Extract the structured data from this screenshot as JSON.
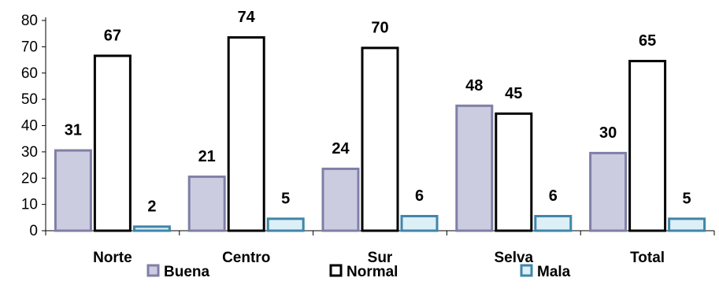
{
  "chart_data": {
    "type": "bar",
    "title": "",
    "xlabel": "",
    "ylabel": "",
    "categories": [
      "Norte",
      "Centro",
      "Sur",
      "Selva",
      "Total"
    ],
    "series": [
      {
        "name": "Buena",
        "values": [
          31,
          21,
          24,
          48,
          30
        ],
        "fill": "#cccce0",
        "stroke": "#7f7fa6"
      },
      {
        "name": "Normal",
        "values": [
          67,
          74,
          70,
          45,
          65
        ],
        "fill": "#ffffff",
        "stroke": "#000000"
      },
      {
        "name": "Mala",
        "values": [
          2,
          5,
          6,
          6,
          5
        ],
        "fill": "#ddeff7",
        "stroke": "#3f86aa"
      }
    ],
    "ylim": [
      0,
      80
    ],
    "yticks": [
      0,
      10,
      20,
      30,
      40,
      50,
      60,
      70,
      80
    ],
    "grid": false,
    "legend_position": "bottom",
    "data_labels": true
  }
}
